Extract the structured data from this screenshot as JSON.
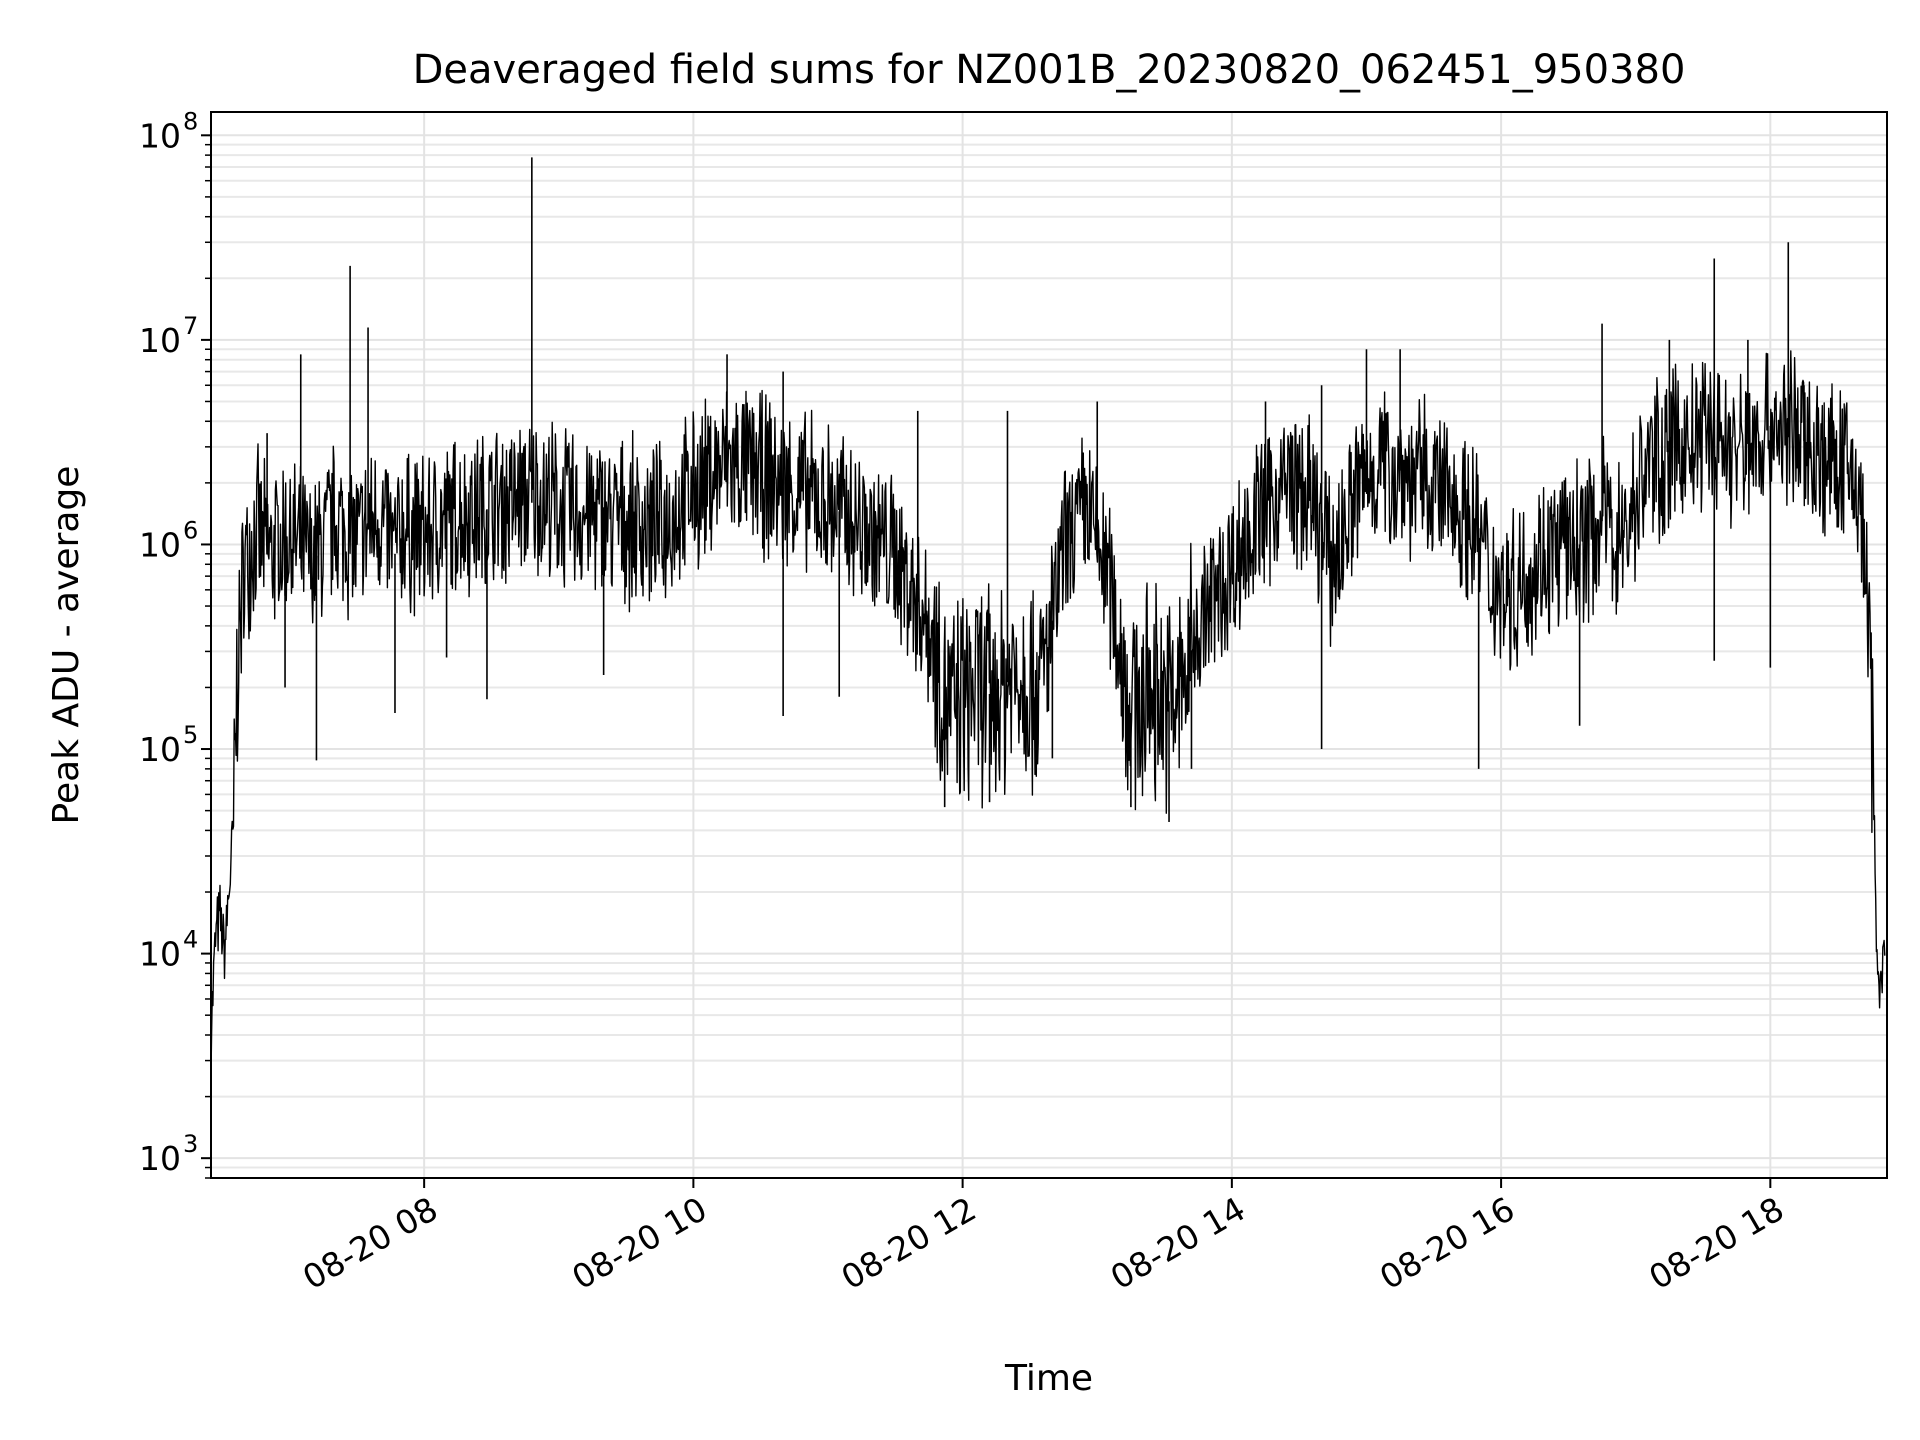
{
  "chart_data": {
    "type": "line",
    "title": "Deaveraged field sums for NZ001B_20230820_062451_950380",
    "xlabel": "Time",
    "ylabel": "Peak ADU - average",
    "xlim": [
      "2023-08-20T06:25",
      "2023-08-20T18:52"
    ],
    "ylim": [
      800,
      130000000
    ],
    "yscale": "log",
    "grid": true,
    "x_ticks": [
      {
        "t": "2023-08-20T08:00",
        "label": "08-20 08"
      },
      {
        "t": "2023-08-20T10:00",
        "label": "08-20 10"
      },
      {
        "t": "2023-08-20T12:00",
        "label": "08-20 12"
      },
      {
        "t": "2023-08-20T14:00",
        "label": "08-20 14"
      },
      {
        "t": "2023-08-20T16:00",
        "label": "08-20 16"
      },
      {
        "t": "2023-08-20T18:00",
        "label": "08-20 18"
      }
    ],
    "y_ticks": [
      {
        "v": 1000,
        "base": "10",
        "exp": "3"
      },
      {
        "v": 10000,
        "base": "10",
        "exp": "4"
      },
      {
        "v": 100000,
        "base": "10",
        "exp": "5"
      },
      {
        "v": 1000000,
        "base": "10",
        "exp": "6"
      },
      {
        "v": 10000000,
        "base": "10",
        "exp": "7"
      },
      {
        "v": 100000000,
        "base": "10",
        "exp": "8"
      }
    ],
    "series": [
      {
        "color": "#000000",
        "x": [
          "2023-08-20T06:25",
          "2023-08-20T06:27",
          "2023-08-20T06:29",
          "2023-08-20T06:31",
          "2023-08-20T06:33",
          "2023-08-20T06:35",
          "2023-08-20T06:37",
          "2023-08-20T06:40",
          "2023-08-20T06:45",
          "2023-08-20T06:50",
          "2023-08-20T07:00",
          "2023-08-20T07:10",
          "2023-08-20T07:20",
          "2023-08-20T07:27",
          "2023-08-20T07:30",
          "2023-08-20T07:40",
          "2023-08-20T07:47",
          "2023-08-20T07:50",
          "2023-08-20T08:00",
          "2023-08-20T08:15",
          "2023-08-20T08:30",
          "2023-08-20T08:45",
          "2023-08-20T08:48",
          "2023-08-20T08:50",
          "2023-08-20T09:00",
          "2023-08-20T09:15",
          "2023-08-20T09:30",
          "2023-08-20T09:45",
          "2023-08-20T10:00",
          "2023-08-20T10:15",
          "2023-08-20T10:30",
          "2023-08-20T10:45",
          "2023-08-20T11:00",
          "2023-08-20T11:15",
          "2023-08-20T11:30",
          "2023-08-20T11:45",
          "2023-08-20T11:55",
          "2023-08-20T12:05",
          "2023-08-20T12:15",
          "2023-08-20T12:25",
          "2023-08-20T12:35",
          "2023-08-20T12:45",
          "2023-08-20T12:55",
          "2023-08-20T13:05",
          "2023-08-20T13:15",
          "2023-08-20T13:25",
          "2023-08-20T13:35",
          "2023-08-20T13:45",
          "2023-08-20T13:55",
          "2023-08-20T14:05",
          "2023-08-20T14:15",
          "2023-08-20T14:25",
          "2023-08-20T14:35",
          "2023-08-20T14:45",
          "2023-08-20T14:55",
          "2023-08-20T15:05",
          "2023-08-20T15:20",
          "2023-08-20T15:35",
          "2023-08-20T15:50",
          "2023-08-20T15:55",
          "2023-08-20T16:05",
          "2023-08-20T16:20",
          "2023-08-20T16:35",
          "2023-08-20T16:45",
          "2023-08-20T16:55",
          "2023-08-20T17:05",
          "2023-08-20T17:20",
          "2023-08-20T17:35",
          "2023-08-20T17:45",
          "2023-08-20T18:00",
          "2023-08-20T18:10",
          "2023-08-20T18:15",
          "2023-08-20T18:25",
          "2023-08-20T18:35",
          "2023-08-20T18:40",
          "2023-08-20T18:43",
          "2023-08-20T18:45",
          "2023-08-20T18:47",
          "2023-08-20T18:49",
          "2023-08-20T18:51"
        ],
        "y": [
          4000,
          12000,
          15000,
          10000,
          20000,
          40000,
          300000,
          800000,
          1200000,
          900000,
          1100000,
          800000,
          1300000,
          1100000,
          1000000,
          1400000,
          900000,
          1200000,
          1100000,
          1400000,
          1500000,
          1700000,
          1600000,
          1800000,
          1500000,
          1400000,
          1300000,
          1200000,
          1800000,
          2500000,
          2200000,
          1800000,
          1600000,
          1200000,
          900000,
          400000,
          150000,
          200000,
          180000,
          250000,
          200000,
          900000,
          1500000,
          700000,
          150000,
          200000,
          160000,
          400000,
          600000,
          1000000,
          1500000,
          2000000,
          1600000,
          800000,
          1800000,
          2500000,
          2200000,
          1800000,
          1200000,
          700000,
          600000,
          900000,
          1000000,
          1300000,
          1100000,
          2500000,
          3000000,
          3500000,
          2800000,
          3800000,
          3500000,
          3200000,
          2500000,
          2200000,
          1800000,
          600000,
          200000,
          15000,
          7000,
          9000
        ],
        "spikes": [
          {
            "x": "2023-08-20T06:50",
            "y": 3500000
          },
          {
            "x": "2023-08-20T07:05",
            "y": 8500000
          },
          {
            "x": "2023-08-20T07:27",
            "y": 23000000
          },
          {
            "x": "2023-08-20T07:35",
            "y": 11500000
          },
          {
            "x": "2023-08-20T08:48",
            "y": 78000000
          },
          {
            "x": "2023-08-20T10:15",
            "y": 8500000
          },
          {
            "x": "2023-08-20T10:40",
            "y": 7000000
          },
          {
            "x": "2023-08-20T11:40",
            "y": 4500000
          },
          {
            "x": "2023-08-20T12:20",
            "y": 4500000
          },
          {
            "x": "2023-08-20T13:00",
            "y": 5000000
          },
          {
            "x": "2023-08-20T14:15",
            "y": 5000000
          },
          {
            "x": "2023-08-20T14:40",
            "y": 6000000
          },
          {
            "x": "2023-08-20T15:00",
            "y": 9000000
          },
          {
            "x": "2023-08-20T15:15",
            "y": 9000000
          },
          {
            "x": "2023-08-20T16:45",
            "y": 12000000
          },
          {
            "x": "2023-08-20T17:15",
            "y": 10000000
          },
          {
            "x": "2023-08-20T17:35",
            "y": 25000000
          },
          {
            "x": "2023-08-20T17:50",
            "y": 10000000
          },
          {
            "x": "2023-08-20T18:08",
            "y": 30000000
          },
          {
            "x": "2023-08-20T18:15",
            "y": 6000000
          }
        ],
        "dips": [
          {
            "x": "2023-08-20T06:58",
            "y": 200000
          },
          {
            "x": "2023-08-20T07:12",
            "y": 88000
          },
          {
            "x": "2023-08-20T07:47",
            "y": 150000
          },
          {
            "x": "2023-08-20T08:10",
            "y": 280000
          },
          {
            "x": "2023-08-20T08:28",
            "y": 175000
          },
          {
            "x": "2023-08-20T09:20",
            "y": 230000
          },
          {
            "x": "2023-08-20T10:40",
            "y": 145000
          },
          {
            "x": "2023-08-20T11:05",
            "y": 180000
          },
          {
            "x": "2023-08-20T11:52",
            "y": 52000
          },
          {
            "x": "2023-08-20T12:12",
            "y": 55000
          },
          {
            "x": "2023-08-20T12:40",
            "y": 90000
          },
          {
            "x": "2023-08-20T13:15",
            "y": 52000
          },
          {
            "x": "2023-08-20T13:32",
            "y": 44000
          },
          {
            "x": "2023-08-20T13:42",
            "y": 80000
          },
          {
            "x": "2023-08-20T14:40",
            "y": 100000
          },
          {
            "x": "2023-08-20T15:50",
            "y": 80000
          },
          {
            "x": "2023-08-20T16:35",
            "y": 130000
          },
          {
            "x": "2023-08-20T17:35",
            "y": 270000
          },
          {
            "x": "2023-08-20T18:00",
            "y": 250000
          }
        ]
      }
    ]
  }
}
